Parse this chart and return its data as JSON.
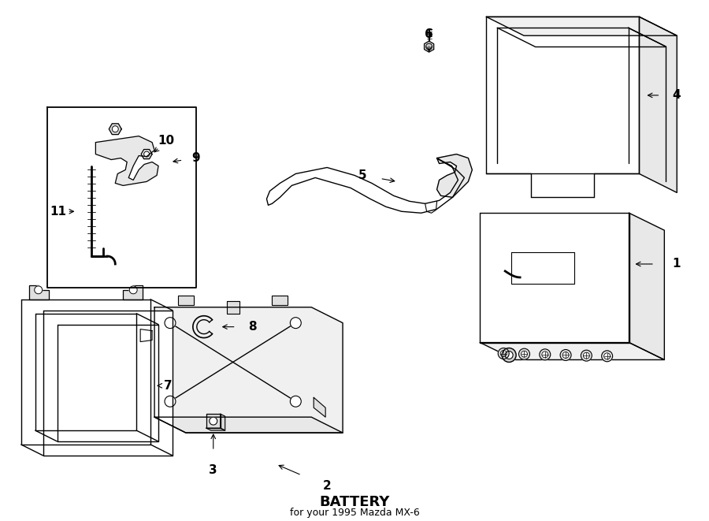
{
  "title": "BATTERY",
  "subtitle": "for your 1995 Mazda MX-6",
  "bg_color": "#ffffff",
  "line_color": "#000000",
  "fig_width": 9.0,
  "fig_height": 6.61
}
